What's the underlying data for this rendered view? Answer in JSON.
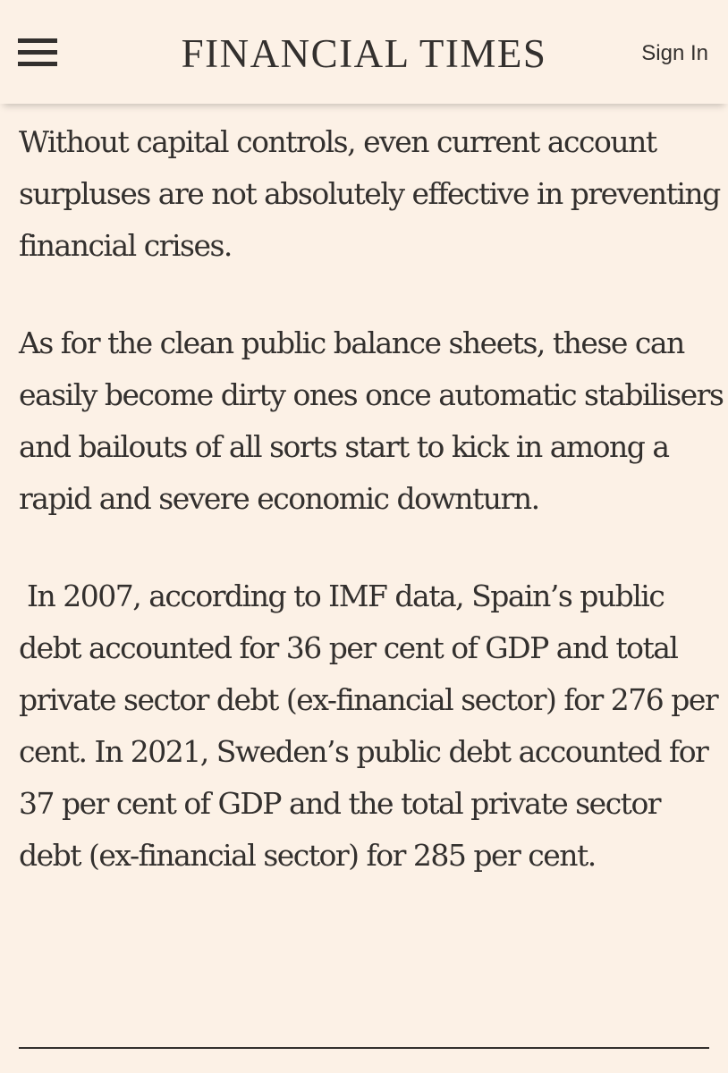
{
  "header": {
    "masthead": "FINANCIAL TIMES",
    "sign_in_label": "Sign In"
  },
  "article": {
    "paragraphs": [
      "Without capital controls, even current account surpluses are not absolutely effective in preventing financial crises.",
      "As for the clean public balance sheets, these can easily become dirty ones once automatic stabilisers and bailouts of all sorts start to kick in among a rapid and severe economic downturn.",
      " In 2007, according to IMF data, Spain’s public debt accounted for 36 per cent of GDP and total private sector debt (ex-financial sector) for 276 per cent. In 2021, Sweden’s public debt accounted for 37 per cent of GDP and the total private sector debt (ex-financial sector) for 285 per cent."
    ]
  },
  "icons": {
    "menu": "hamburger-menu-icon"
  },
  "colors": {
    "background": "#fcf1e6",
    "text": "#33302e"
  }
}
